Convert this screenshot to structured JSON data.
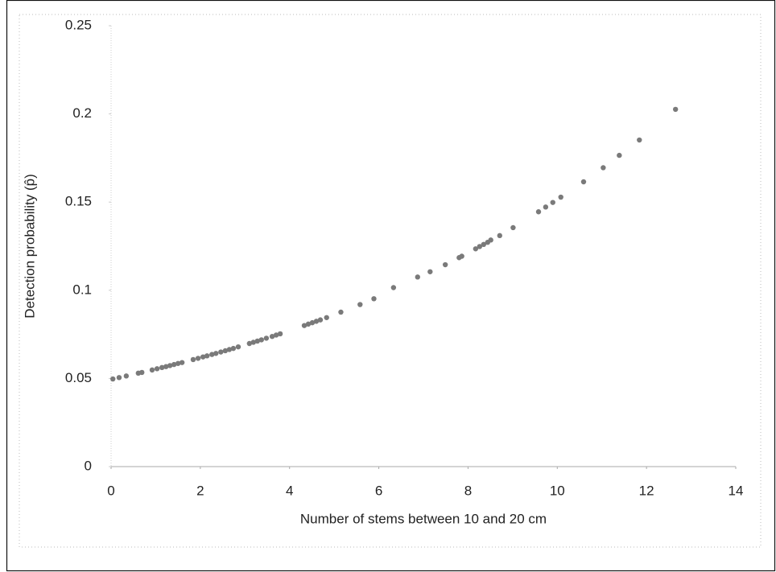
{
  "chart_data": {
    "type": "scatter",
    "x_label": "Number of stems between 10 and 20 cm",
    "y_label": "Detection probability (p̂)",
    "xlim": [
      0,
      14
    ],
    "xticks": [
      0,
      2,
      4,
      6,
      8,
      10,
      12,
      14
    ],
    "ylim": [
      0,
      0.25
    ],
    "yticks": [
      0,
      0.05,
      0.1,
      0.15,
      0.2,
      0.25
    ],
    "color": "#7a7a7a",
    "x": [
      0.04,
      0.18,
      0.34,
      0.61,
      0.69,
      0.92,
      1.03,
      1.14,
      1.23,
      1.32,
      1.41,
      1.5,
      1.59,
      1.84,
      1.95,
      2.06,
      2.15,
      2.26,
      2.35,
      2.46,
      2.56,
      2.65,
      2.74,
      2.85,
      3.1,
      3.19,
      3.28,
      3.37,
      3.48,
      3.61,
      3.7,
      3.79,
      4.33,
      4.42,
      4.51,
      4.6,
      4.69,
      4.83,
      5.15,
      5.58,
      5.89,
      6.33,
      6.87,
      7.15,
      7.49,
      7.8,
      7.86,
      8.17,
      8.26,
      8.35,
      8.44,
      8.51,
      8.71,
      9.01,
      9.58,
      9.74,
      9.9,
      10.08,
      10.59,
      11.03,
      11.39,
      11.84,
      12.65
    ],
    "values": [
      0.0497,
      0.0505,
      0.0514,
      0.053,
      0.0534,
      0.0548,
      0.0555,
      0.0562,
      0.0567,
      0.0573,
      0.0579,
      0.0585,
      0.059,
      0.0607,
      0.0614,
      0.0622,
      0.0628,
      0.0636,
      0.0642,
      0.065,
      0.0657,
      0.0664,
      0.067,
      0.0679,
      0.0698,
      0.0705,
      0.0712,
      0.0719,
      0.0728,
      0.0738,
      0.0746,
      0.0753,
      0.08,
      0.0808,
      0.0816,
      0.0824,
      0.0832,
      0.0845,
      0.0876,
      0.0919,
      0.0952,
      0.1015,
      0.1075,
      0.1105,
      0.1145,
      0.1185,
      0.1193,
      0.1235,
      0.1248,
      0.126,
      0.1272,
      0.1285,
      0.131,
      0.1355,
      0.1445,
      0.1472,
      0.1498,
      0.1528,
      0.1615,
      0.1695,
      0.1765,
      0.1852,
      0.2026
    ]
  }
}
